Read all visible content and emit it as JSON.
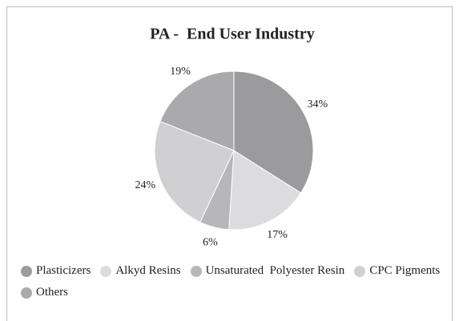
{
  "chart_data": {
    "type": "pie",
    "title": "PA -  End User Industry",
    "categories": [
      "Plasticizers",
      "Alkyd Resins",
      "Unsaturated  Polyester Resin",
      "CPC Pigments",
      "Others"
    ],
    "values": [
      34,
      17,
      6,
      24,
      19
    ],
    "value_labels": [
      "34%",
      "17%",
      "6%",
      "24%",
      "19%"
    ],
    "colors": [
      "#9b9b9d",
      "#dcdcde",
      "#b7b7b9",
      "#d0d0d2",
      "#aaaaac"
    ],
    "legend": "bottom"
  }
}
